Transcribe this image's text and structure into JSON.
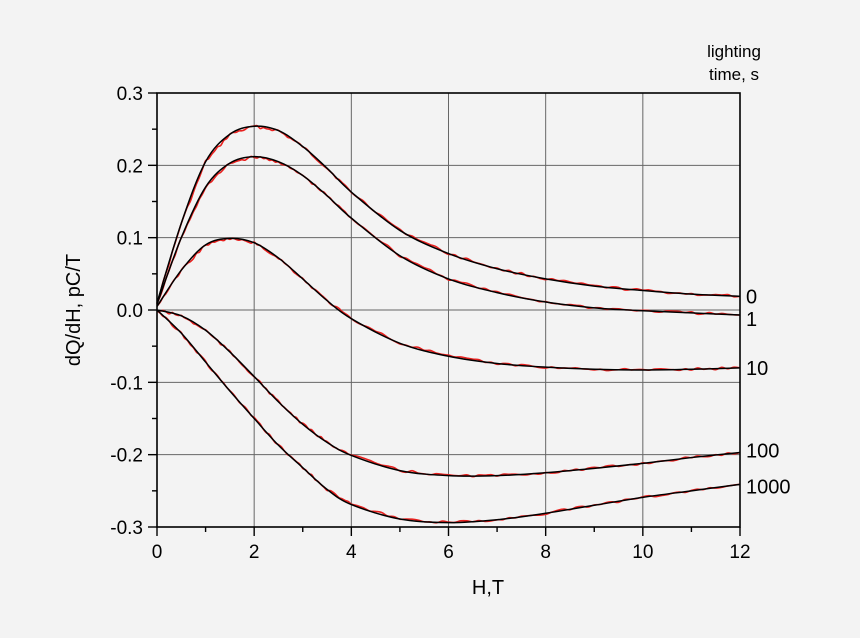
{
  "chart_data": {
    "type": "line",
    "title": "",
    "xlabel": "H,T",
    "ylabel": "dQ/dH, pC/T",
    "xlim": [
      0,
      12
    ],
    "ylim": [
      -0.3,
      0.3
    ],
    "x_ticks": [
      0,
      2,
      4,
      6,
      8,
      10,
      12
    ],
    "y_ticks": [
      0.3,
      0.2,
      0.1,
      0.0,
      -0.1,
      -0.2,
      -0.3
    ],
    "x_tick_labels": [
      "0",
      "2",
      "4",
      "6",
      "8",
      "10",
      "12"
    ],
    "y_tick_labels": [
      "0.3",
      "0.2",
      "0.1",
      "0.0",
      "-0.1",
      "-0.2",
      "-0.3"
    ],
    "grid": true,
    "legend_title": [
      "lighting",
      "time, s"
    ],
    "legend_placement": "right, at curve ends",
    "colors": {
      "measured": "#e8201e",
      "fit": "#000000",
      "background": "#f3f3f3"
    },
    "series": [
      {
        "name": "0",
        "x": [
          0,
          0.5,
          1,
          1.5,
          2,
          2.5,
          3,
          3.5,
          4,
          5,
          6,
          7,
          8,
          9,
          10,
          11,
          12
        ],
        "values": [
          0.01,
          0.12,
          0.205,
          0.243,
          0.254,
          0.248,
          0.226,
          0.196,
          0.163,
          0.11,
          0.078,
          0.057,
          0.043,
          0.033,
          0.027,
          0.022,
          0.019
        ]
      },
      {
        "name": "1",
        "x": [
          0,
          0.5,
          1,
          1.5,
          2,
          2.5,
          3,
          3.5,
          4,
          5,
          6,
          7,
          8,
          9,
          10,
          11,
          12
        ],
        "values": [
          0.008,
          0.1,
          0.17,
          0.203,
          0.212,
          0.205,
          0.186,
          0.158,
          0.127,
          0.075,
          0.043,
          0.024,
          0.011,
          0.003,
          -0.001,
          -0.004,
          -0.007
        ]
      },
      {
        "name": "10",
        "x": [
          0,
          0.5,
          1,
          1.5,
          2,
          2.5,
          3,
          3.5,
          4,
          5,
          6,
          7,
          8,
          9,
          10,
          11,
          12
        ],
        "values": [
          0.005,
          0.055,
          0.09,
          0.099,
          0.093,
          0.072,
          0.043,
          0.013,
          -0.012,
          -0.046,
          -0.064,
          -0.074,
          -0.079,
          -0.082,
          -0.083,
          -0.082,
          -0.08
        ]
      },
      {
        "name": "100",
        "x": [
          0,
          0.5,
          1,
          1.5,
          2,
          2.5,
          3,
          3.5,
          4,
          5,
          6,
          7,
          8,
          9,
          10,
          11,
          12
        ],
        "values": [
          0.0,
          -0.008,
          -0.028,
          -0.058,
          -0.092,
          -0.127,
          -0.158,
          -0.183,
          -0.201,
          -0.222,
          -0.229,
          -0.229,
          -0.225,
          -0.219,
          -0.212,
          -0.204,
          -0.197
        ]
      },
      {
        "name": "1000",
        "x": [
          0,
          0.5,
          1,
          1.5,
          2,
          2.5,
          3,
          3.5,
          4,
          5,
          6,
          7,
          8,
          9,
          10,
          11,
          12
        ],
        "values": [
          0.0,
          -0.032,
          -0.072,
          -0.112,
          -0.15,
          -0.187,
          -0.218,
          -0.248,
          -0.269,
          -0.289,
          -0.294,
          -0.29,
          -0.281,
          -0.27,
          -0.259,
          -0.25,
          -0.241
        ]
      }
    ]
  }
}
